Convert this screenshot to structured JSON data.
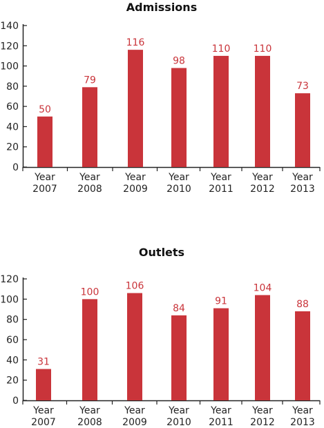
{
  "colors": {
    "bar": "#c9343a",
    "axis": "#222222",
    "label": "#c9343a"
  },
  "chart_data": [
    {
      "type": "bar",
      "title": "Admissions",
      "categories": [
        [
          "Year",
          "2007"
        ],
        [
          "Year",
          "2008"
        ],
        [
          "Year",
          "2009"
        ],
        [
          "Year",
          "2010"
        ],
        [
          "Year",
          "2011"
        ],
        [
          "Year",
          "2012"
        ],
        [
          "Year",
          "2013"
        ]
      ],
      "values": [
        50,
        79,
        116,
        98,
        110,
        110,
        73
      ],
      "ylim": [
        0,
        140
      ],
      "yticks": [
        0,
        20,
        40,
        60,
        80,
        100,
        120,
        140
      ],
      "grid": false,
      "data_labels": true
    },
    {
      "type": "bar",
      "title": "Outlets",
      "categories": [
        [
          "Year",
          "2007"
        ],
        [
          "Year",
          "2008"
        ],
        [
          "Year",
          "2009"
        ],
        [
          "Year",
          "2010"
        ],
        [
          "Year",
          "2011"
        ],
        [
          "Year",
          "2012"
        ],
        [
          "Year",
          "2013"
        ]
      ],
      "values": [
        31,
        100,
        106,
        84,
        91,
        104,
        88
      ],
      "ylim": [
        0,
        120
      ],
      "yticks": [
        0,
        20,
        40,
        60,
        80,
        100,
        120
      ],
      "grid": false,
      "data_labels": true
    }
  ]
}
